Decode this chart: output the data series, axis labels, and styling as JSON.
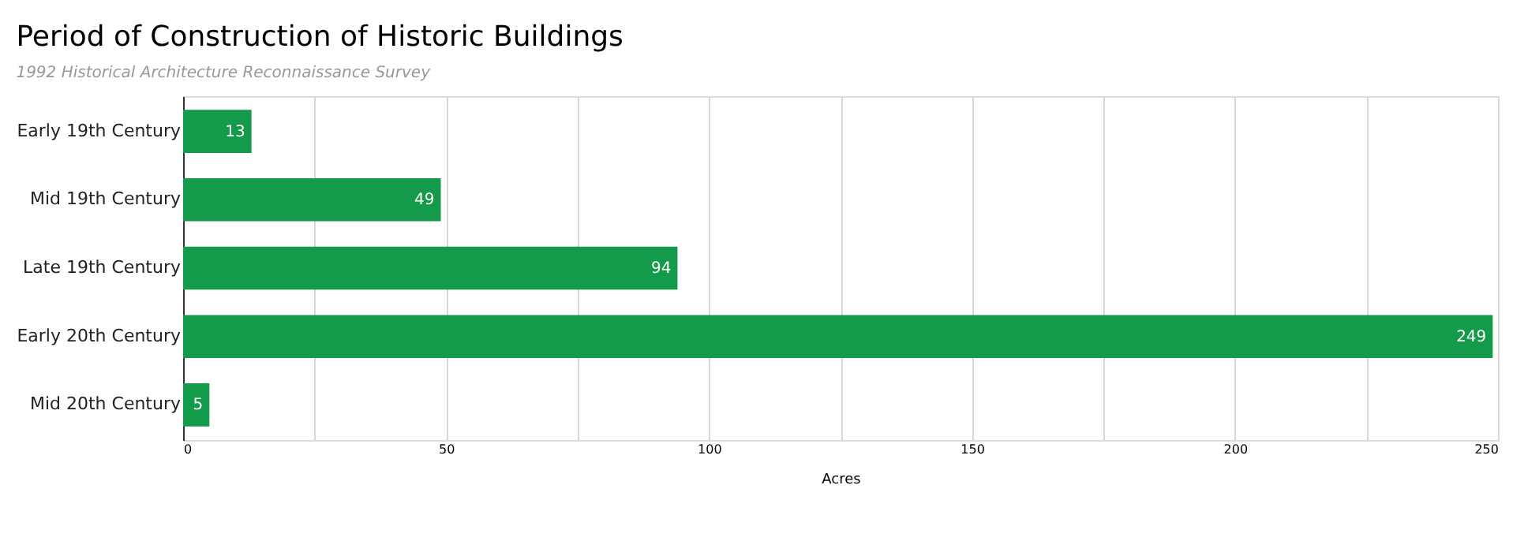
{
  "chart_data": {
    "type": "bar",
    "orientation": "horizontal",
    "title": "Period of Construction of Historic Buildings",
    "subtitle": "1992 Historical Architecture Reconnaissance Survey",
    "xlabel": "Acres",
    "categories": [
      "Early 19th Century",
      "Mid 19th Century",
      "Late 19th Century",
      "Early 20th Century",
      "Mid 20th Century"
    ],
    "values": [
      13,
      49,
      94,
      249,
      5
    ],
    "color": "#139a4a",
    "data_labels": true,
    "xlim": [
      0,
      250
    ],
    "xticks": [
      0,
      {
        "value": 25,
        "label": null
      },
      50,
      {
        "value": 75,
        "label": null
      },
      100,
      {
        "value": 125,
        "label": null
      },
      150,
      {
        "value": 175,
        "label": null
      },
      200,
      {
        "value": 225,
        "label": null
      },
      250
    ],
    "grid": "x"
  }
}
